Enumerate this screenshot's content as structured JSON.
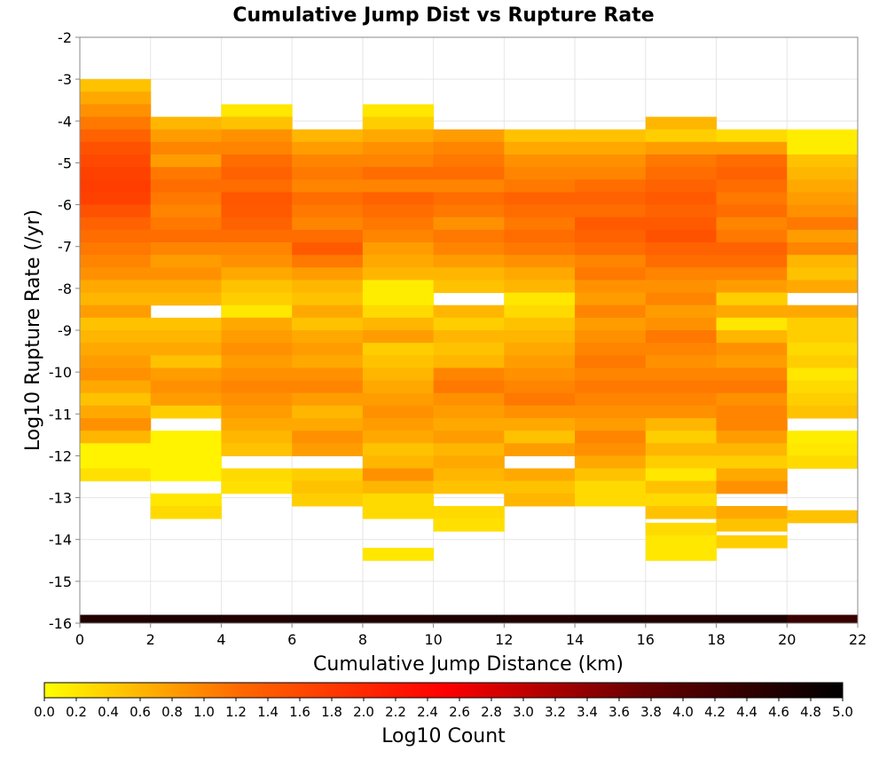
{
  "chart_data": {
    "type": "heatmap",
    "title": "Cumulative Jump Dist vs Rupture Rate",
    "xlabel": "Cumulative Jump Distance (km)",
    "ylabel": "Log10 Rupture Rate (/yr)",
    "xlim": [
      0,
      22
    ],
    "ylim": [
      -16,
      -2
    ],
    "x_ticks": [
      0,
      2,
      4,
      6,
      8,
      10,
      12,
      14,
      16,
      18,
      20,
      22
    ],
    "y_ticks": [
      -2,
      -3,
      -4,
      -5,
      -6,
      -7,
      -8,
      -9,
      -10,
      -11,
      -12,
      -13,
      -14,
      -15,
      -16
    ],
    "x_bin_width": 2,
    "y_bin_height": 0.3,
    "grid": true,
    "colorbar": {
      "label": "Log10 Count",
      "range": [
        0.0,
        5.0
      ],
      "ticks": [
        "0.0",
        "0.2",
        "0.4",
        "0.6",
        "0.8",
        "1.0",
        "1.2",
        "1.4",
        "1.6",
        "1.8",
        "2.0",
        "2.2",
        "2.4",
        "2.6",
        "2.8",
        "3.0",
        "3.2",
        "3.4",
        "3.6",
        "3.8",
        "4.0",
        "4.2",
        "4.4",
        "4.6",
        "4.8",
        "5.0"
      ],
      "colors": [
        "#ffff00",
        "#ff6600",
        "#ff0000",
        "#660000",
        "#000000"
      ]
    },
    "cells": [
      [
        0,
        -3.0,
        0.5
      ],
      [
        0,
        -3.3,
        0.7
      ],
      [
        0,
        -3.6,
        0.9
      ],
      [
        0,
        -3.9,
        1.1
      ],
      [
        0,
        -4.2,
        1.3
      ],
      [
        0,
        -4.5,
        1.5
      ],
      [
        0,
        -4.8,
        1.6
      ],
      [
        0,
        -5.1,
        1.7
      ],
      [
        0,
        -5.4,
        1.75
      ],
      [
        0,
        -5.7,
        1.7
      ],
      [
        0,
        -6.0,
        1.5
      ],
      [
        0,
        -6.3,
        1.3
      ],
      [
        0,
        -6.6,
        1.2
      ],
      [
        0,
        -6.9,
        1.1
      ],
      [
        0,
        -7.2,
        1.0
      ],
      [
        0,
        -7.5,
        0.9
      ],
      [
        0,
        -7.8,
        0.7
      ],
      [
        0,
        -8.1,
        0.6
      ],
      [
        0,
        -8.4,
        0.8
      ],
      [
        0,
        -8.7,
        0.5
      ],
      [
        0,
        -9.0,
        0.6
      ],
      [
        0,
        -9.3,
        0.7
      ],
      [
        0,
        -9.6,
        0.8
      ],
      [
        0,
        -9.9,
        0.9
      ],
      [
        0,
        -10.2,
        0.7
      ],
      [
        0,
        -10.5,
        0.5
      ],
      [
        0,
        -10.8,
        0.7
      ],
      [
        0,
        -11.1,
        0.9
      ],
      [
        0,
        -11.4,
        0.6
      ],
      [
        0,
        -11.7,
        0.1
      ],
      [
        0,
        -12.0,
        0.1
      ],
      [
        0,
        -12.3,
        0.25
      ],
      [
        2,
        -3.9,
        0.6
      ],
      [
        2,
        -4.2,
        0.8
      ],
      [
        2,
        -4.5,
        1.0
      ],
      [
        2,
        -4.8,
        0.8
      ],
      [
        2,
        -5.1,
        1.1
      ],
      [
        2,
        -5.4,
        1.2
      ],
      [
        2,
        -5.7,
        1.1
      ],
      [
        2,
        -6.0,
        1.0
      ],
      [
        2,
        -6.3,
        1.1
      ],
      [
        2,
        -6.6,
        1.2
      ],
      [
        2,
        -6.9,
        1.0
      ],
      [
        2,
        -7.2,
        0.8
      ],
      [
        2,
        -7.5,
        0.9
      ],
      [
        2,
        -7.8,
        0.7
      ],
      [
        2,
        -8.1,
        0.6
      ],
      [
        2,
        -8.7,
        0.5
      ],
      [
        2,
        -9.0,
        0.6
      ],
      [
        2,
        -9.3,
        0.7
      ],
      [
        2,
        -9.6,
        0.5
      ],
      [
        2,
        -9.9,
        0.8
      ],
      [
        2,
        -10.2,
        0.9
      ],
      [
        2,
        -10.5,
        0.8
      ],
      [
        2,
        -10.8,
        0.4
      ],
      [
        2,
        -11.4,
        0.1
      ],
      [
        2,
        -11.7,
        0.1
      ],
      [
        2,
        -12.0,
        0.1
      ],
      [
        2,
        -12.3,
        0.1
      ],
      [
        2,
        -12.9,
        0.2
      ],
      [
        2,
        -13.2,
        0.3
      ],
      [
        4,
        -3.6,
        0.2
      ],
      [
        4,
        -3.9,
        0.5
      ],
      [
        4,
        -4.2,
        0.9
      ],
      [
        4,
        -4.5,
        1.0
      ],
      [
        4,
        -4.8,
        1.2
      ],
      [
        4,
        -5.1,
        1.3
      ],
      [
        4,
        -5.4,
        1.2
      ],
      [
        4,
        -5.7,
        1.45
      ],
      [
        4,
        -6.0,
        1.4
      ],
      [
        4,
        -6.3,
        1.3
      ],
      [
        4,
        -6.6,
        1.2
      ],
      [
        4,
        -6.9,
        1.0
      ],
      [
        4,
        -7.2,
        0.9
      ],
      [
        4,
        -7.5,
        0.7
      ],
      [
        4,
        -7.8,
        0.5
      ],
      [
        4,
        -8.1,
        0.4
      ],
      [
        4,
        -8.4,
        0.2
      ],
      [
        4,
        -8.7,
        0.7
      ],
      [
        4,
        -9.0,
        0.8
      ],
      [
        4,
        -9.3,
        0.9
      ],
      [
        4,
        -9.6,
        0.8
      ],
      [
        4,
        -9.9,
        0.9
      ],
      [
        4,
        -10.2,
        1.0
      ],
      [
        4,
        -10.5,
        0.9
      ],
      [
        4,
        -10.8,
        0.8
      ],
      [
        4,
        -11.1,
        0.7
      ],
      [
        4,
        -11.4,
        0.6
      ],
      [
        4,
        -11.7,
        0.5
      ],
      [
        4,
        -12.3,
        0.3
      ],
      [
        4,
        -12.6,
        0.25
      ],
      [
        6,
        -4.2,
        0.6
      ],
      [
        6,
        -4.5,
        0.8
      ],
      [
        6,
        -4.8,
        1.0
      ],
      [
        6,
        -5.1,
        1.1
      ],
      [
        6,
        -5.4,
        1.0
      ],
      [
        6,
        -5.7,
        1.2
      ],
      [
        6,
        -6.0,
        1.1
      ],
      [
        6,
        -6.3,
        1.0
      ],
      [
        6,
        -6.6,
        1.2
      ],
      [
        6,
        -6.9,
        1.4
      ],
      [
        6,
        -7.2,
        1.1
      ],
      [
        6,
        -7.5,
        0.8
      ],
      [
        6,
        -7.8,
        0.6
      ],
      [
        6,
        -8.1,
        0.5
      ],
      [
        6,
        -8.4,
        0.7
      ],
      [
        6,
        -8.7,
        0.5
      ],
      [
        6,
        -9.0,
        0.7
      ],
      [
        6,
        -9.3,
        0.8
      ],
      [
        6,
        -9.6,
        0.7
      ],
      [
        6,
        -9.9,
        0.9
      ],
      [
        6,
        -10.2,
        1.0
      ],
      [
        6,
        -10.5,
        0.8
      ],
      [
        6,
        -10.8,
        0.6
      ],
      [
        6,
        -11.1,
        0.7
      ],
      [
        6,
        -11.4,
        0.9
      ],
      [
        6,
        -11.7,
        0.8
      ],
      [
        6,
        -12.3,
        0.4
      ],
      [
        6,
        -12.6,
        0.5
      ],
      [
        6,
        -12.9,
        0.4
      ],
      [
        8,
        -3.6,
        0.2
      ],
      [
        8,
        -3.9,
        0.4
      ],
      [
        8,
        -4.2,
        0.7
      ],
      [
        8,
        -4.5,
        0.9
      ],
      [
        8,
        -4.8,
        1.0
      ],
      [
        8,
        -5.1,
        1.2
      ],
      [
        8,
        -5.4,
        1.0
      ],
      [
        8,
        -5.7,
        1.3
      ],
      [
        8,
        -6.0,
        1.2
      ],
      [
        8,
        -6.3,
        1.1
      ],
      [
        8,
        -6.6,
        1.0
      ],
      [
        8,
        -6.9,
        0.8
      ],
      [
        8,
        -7.2,
        0.7
      ],
      [
        8,
        -7.5,
        0.6
      ],
      [
        8,
        -7.8,
        0.15
      ],
      [
        8,
        -8.1,
        0.15
      ],
      [
        8,
        -8.4,
        0.3
      ],
      [
        8,
        -8.7,
        0.6
      ],
      [
        8,
        -9.0,
        0.8
      ],
      [
        8,
        -9.3,
        0.4
      ],
      [
        8,
        -9.6,
        0.5
      ],
      [
        8,
        -9.9,
        0.6
      ],
      [
        8,
        -10.2,
        0.7
      ],
      [
        8,
        -10.5,
        0.8
      ],
      [
        8,
        -10.8,
        0.9
      ],
      [
        8,
        -11.1,
        0.8
      ],
      [
        8,
        -11.4,
        0.7
      ],
      [
        8,
        -11.7,
        0.5
      ],
      [
        8,
        -12.0,
        0.6
      ],
      [
        8,
        -12.3,
        0.9
      ],
      [
        8,
        -12.6,
        0.6
      ],
      [
        8,
        -12.9,
        0.3
      ],
      [
        8,
        -13.2,
        0.3
      ],
      [
        8,
        -14.2,
        0.2
      ],
      [
        10,
        -4.2,
        0.8
      ],
      [
        10,
        -4.5,
        1.0
      ],
      [
        10,
        -4.8,
        1.1
      ],
      [
        10,
        -5.1,
        1.2
      ],
      [
        10,
        -5.4,
        1.0
      ],
      [
        10,
        -5.7,
        1.2
      ],
      [
        10,
        -6.0,
        1.1
      ],
      [
        10,
        -6.3,
        0.9
      ],
      [
        10,
        -6.6,
        1.1
      ],
      [
        10,
        -6.9,
        1.0
      ],
      [
        10,
        -7.2,
        0.8
      ],
      [
        10,
        -7.5,
        0.6
      ],
      [
        10,
        -7.8,
        0.5
      ],
      [
        10,
        -8.4,
        0.6
      ],
      [
        10,
        -8.7,
        0.4
      ],
      [
        10,
        -9.0,
        0.6
      ],
      [
        10,
        -9.3,
        0.5
      ],
      [
        10,
        -9.6,
        0.6
      ],
      [
        10,
        -9.9,
        1.0
      ],
      [
        10,
        -10.2,
        1.1
      ],
      [
        10,
        -10.5,
        0.9
      ],
      [
        10,
        -10.8,
        0.8
      ],
      [
        10,
        -11.1,
        0.7
      ],
      [
        10,
        -11.4,
        0.8
      ],
      [
        10,
        -11.7,
        0.6
      ],
      [
        10,
        -12.0,
        0.7
      ],
      [
        10,
        -12.3,
        0.6
      ],
      [
        10,
        -12.6,
        0.5
      ],
      [
        10,
        -13.2,
        0.3
      ],
      [
        10,
        -13.5,
        0.25
      ],
      [
        12,
        -4.2,
        0.5
      ],
      [
        12,
        -4.5,
        0.7
      ],
      [
        12,
        -4.8,
        0.9
      ],
      [
        12,
        -5.1,
        1.0
      ],
      [
        12,
        -5.4,
        1.1
      ],
      [
        12,
        -5.7,
        1.3
      ],
      [
        12,
        -6.0,
        1.2
      ],
      [
        12,
        -6.3,
        1.1
      ],
      [
        12,
        -6.6,
        1.2
      ],
      [
        12,
        -6.9,
        1.1
      ],
      [
        12,
        -7.2,
        0.9
      ],
      [
        12,
        -7.5,
        0.7
      ],
      [
        12,
        -7.8,
        0.6
      ],
      [
        12,
        -8.1,
        0.2
      ],
      [
        12,
        -8.4,
        0.3
      ],
      [
        12,
        -8.7,
        0.5
      ],
      [
        12,
        -9.0,
        0.6
      ],
      [
        12,
        -9.3,
        0.7
      ],
      [
        12,
        -9.6,
        0.8
      ],
      [
        12,
        -9.9,
        0.9
      ],
      [
        12,
        -10.2,
        1.0
      ],
      [
        12,
        -10.5,
        1.1
      ],
      [
        12,
        -10.8,
        0.9
      ],
      [
        12,
        -11.1,
        0.7
      ],
      [
        12,
        -11.4,
        0.5
      ],
      [
        12,
        -11.7,
        0.8
      ],
      [
        12,
        -12.3,
        0.7
      ],
      [
        12,
        -12.6,
        0.5
      ],
      [
        12,
        -12.9,
        0.6
      ],
      [
        14,
        -4.2,
        0.5
      ],
      [
        14,
        -4.5,
        0.7
      ],
      [
        14,
        -4.8,
        0.9
      ],
      [
        14,
        -5.1,
        1.0
      ],
      [
        14,
        -5.4,
        1.2
      ],
      [
        14,
        -5.7,
        1.3
      ],
      [
        14,
        -6.0,
        1.2
      ],
      [
        14,
        -6.3,
        1.4
      ],
      [
        14,
        -6.6,
        1.3
      ],
      [
        14,
        -6.9,
        1.2
      ],
      [
        14,
        -7.2,
        1.0
      ],
      [
        14,
        -7.5,
        1.1
      ],
      [
        14,
        -7.8,
        0.9
      ],
      [
        14,
        -8.1,
        0.8
      ],
      [
        14,
        -8.4,
        1.0
      ],
      [
        14,
        -8.7,
        0.8
      ],
      [
        14,
        -9.0,
        0.9
      ],
      [
        14,
        -9.3,
        1.0
      ],
      [
        14,
        -9.6,
        1.1
      ],
      [
        14,
        -9.9,
        1.0
      ],
      [
        14,
        -10.2,
        1.1
      ],
      [
        14,
        -10.5,
        1.0
      ],
      [
        14,
        -10.8,
        0.9
      ],
      [
        14,
        -11.1,
        0.8
      ],
      [
        14,
        -11.4,
        1.0
      ],
      [
        14,
        -11.7,
        0.9
      ],
      [
        14,
        -12.0,
        0.7
      ],
      [
        14,
        -12.3,
        0.5
      ],
      [
        14,
        -12.6,
        0.3
      ],
      [
        14,
        -12.9,
        0.3
      ],
      [
        16,
        -3.9,
        0.6
      ],
      [
        16,
        -4.2,
        0.4
      ],
      [
        16,
        -4.5,
        0.8
      ],
      [
        16,
        -4.8,
        1.1
      ],
      [
        16,
        -5.1,
        1.2
      ],
      [
        16,
        -5.4,
        1.3
      ],
      [
        16,
        -5.7,
        1.4
      ],
      [
        16,
        -6.0,
        1.3
      ],
      [
        16,
        -6.3,
        1.4
      ],
      [
        16,
        -6.6,
        1.5
      ],
      [
        16,
        -6.9,
        1.3
      ],
      [
        16,
        -7.2,
        1.2
      ],
      [
        16,
        -7.5,
        1.0
      ],
      [
        16,
        -7.8,
        0.9
      ],
      [
        16,
        -8.1,
        1.0
      ],
      [
        16,
        -8.4,
        0.8
      ],
      [
        16,
        -8.7,
        0.9
      ],
      [
        16,
        -9.0,
        1.1
      ],
      [
        16,
        -9.3,
        1.0
      ],
      [
        16,
        -9.6,
        0.9
      ],
      [
        16,
        -9.9,
        1.0
      ],
      [
        16,
        -10.2,
        1.1
      ],
      [
        16,
        -10.5,
        1.0
      ],
      [
        16,
        -10.8,
        0.9
      ],
      [
        16,
        -11.1,
        0.6
      ],
      [
        16,
        -11.4,
        0.4
      ],
      [
        16,
        -11.7,
        0.6
      ],
      [
        16,
        -12.0,
        0.4
      ],
      [
        16,
        -12.3,
        0.2
      ],
      [
        16,
        -12.6,
        0.5
      ],
      [
        16,
        -12.9,
        0.3
      ],
      [
        16,
        -13.2,
        0.5
      ],
      [
        16,
        -13.6,
        0.3
      ],
      [
        16,
        -13.9,
        0.2
      ],
      [
        16,
        -14.2,
        0.2
      ],
      [
        18,
        -4.2,
        0.3
      ],
      [
        18,
        -4.5,
        0.8
      ],
      [
        18,
        -4.8,
        1.2
      ],
      [
        18,
        -5.1,
        1.3
      ],
      [
        18,
        -5.4,
        1.2
      ],
      [
        18,
        -5.7,
        1.1
      ],
      [
        18,
        -6.0,
        1.2
      ],
      [
        18,
        -6.3,
        1.0
      ],
      [
        18,
        -6.6,
        1.1
      ],
      [
        18,
        -6.9,
        1.3
      ],
      [
        18,
        -7.2,
        1.2
      ],
      [
        18,
        -7.5,
        1.0
      ],
      [
        18,
        -7.8,
        0.8
      ],
      [
        18,
        -8.1,
        0.4
      ],
      [
        18,
        -8.4,
        0.7
      ],
      [
        18,
        -8.7,
        0.2
      ],
      [
        18,
        -9.0,
        0.6
      ],
      [
        18,
        -9.3,
        0.9
      ],
      [
        18,
        -9.6,
        0.8
      ],
      [
        18,
        -9.9,
        1.0
      ],
      [
        18,
        -10.2,
        1.1
      ],
      [
        18,
        -10.5,
        0.9
      ],
      [
        18,
        -10.8,
        1.0
      ],
      [
        18,
        -11.1,
        1.0
      ],
      [
        18,
        -11.4,
        0.8
      ],
      [
        18,
        -11.7,
        0.6
      ],
      [
        18,
        -12.0,
        0.4
      ],
      [
        18,
        -12.3,
        0.7
      ],
      [
        18,
        -12.6,
        0.9
      ],
      [
        18,
        -13.2,
        0.7
      ],
      [
        18,
        -13.5,
        0.5
      ],
      [
        18,
        -13.9,
        0.4
      ],
      [
        20,
        -4.2,
        0.15
      ],
      [
        20,
        -4.5,
        0.15
      ],
      [
        20,
        -4.8,
        0.5
      ],
      [
        20,
        -5.1,
        0.6
      ],
      [
        20,
        -5.4,
        0.7
      ],
      [
        20,
        -5.7,
        0.8
      ],
      [
        20,
        -6.0,
        0.9
      ],
      [
        20,
        -6.3,
        1.1
      ],
      [
        20,
        -6.6,
        0.8
      ],
      [
        20,
        -6.9,
        1.0
      ],
      [
        20,
        -7.2,
        0.6
      ],
      [
        20,
        -7.5,
        0.5
      ],
      [
        20,
        -7.8,
        0.7
      ],
      [
        20,
        -8.4,
        0.7
      ],
      [
        20,
        -8.7,
        0.4
      ],
      [
        20,
        -9.0,
        0.4
      ],
      [
        20,
        -9.3,
        0.3
      ],
      [
        20,
        -9.6,
        0.4
      ],
      [
        20,
        -9.9,
        0.2
      ],
      [
        20,
        -10.2,
        0.3
      ],
      [
        20,
        -10.5,
        0.4
      ],
      [
        20,
        -10.8,
        0.5
      ],
      [
        20,
        -11.4,
        0.15
      ],
      [
        20,
        -11.7,
        0.2
      ],
      [
        20,
        -12.0,
        0.3
      ],
      [
        20,
        -13.3,
        0.5
      ]
    ],
    "floor_row": {
      "y": -16.0,
      "height": 0.2,
      "values": [
        4.6,
        4.65,
        4.6,
        4.65,
        4.6,
        4.65,
        4.6,
        4.65,
        4.6,
        4.65,
        4.3
      ]
    }
  }
}
